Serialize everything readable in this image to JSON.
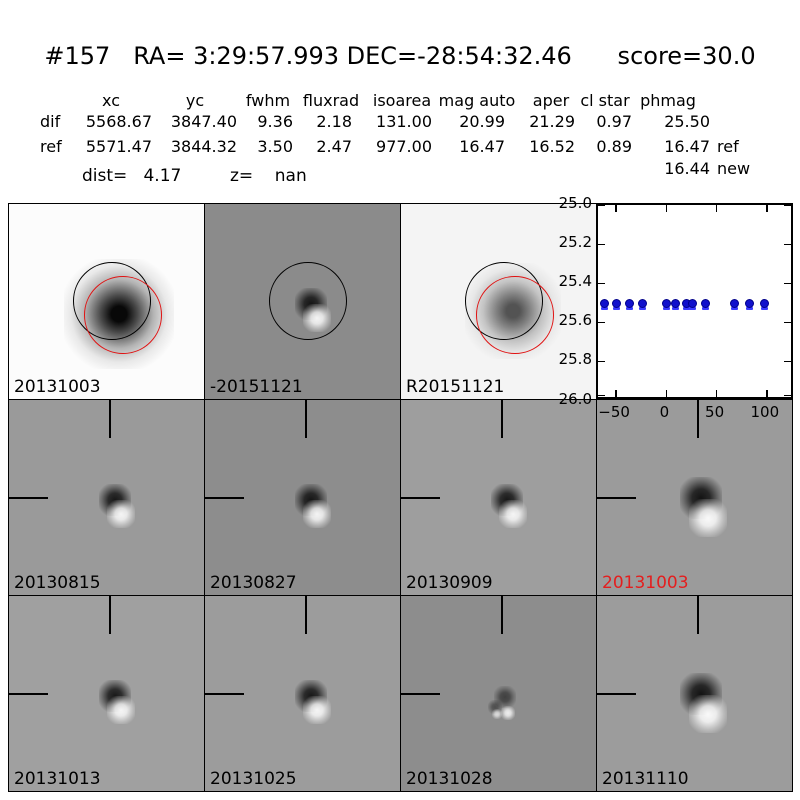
{
  "title": "#157   RA= 3:29:57.993 DEC=-28:54:32.46      score=30.0",
  "table": {
    "headers": [
      "xc",
      "yc",
      "fwhm",
      "fluxrad",
      "isoarea",
      "mag auto",
      "aper",
      "cl star",
      "phmag"
    ],
    "rows": [
      {
        "label": "dif",
        "values": [
          "5568.67",
          "3847.40",
          "9.36",
          "2.18",
          "131.00",
          "20.99",
          "21.29",
          "0.97",
          "25.50"
        ],
        "suffix": ""
      },
      {
        "label": "ref",
        "values": [
          "5571.47",
          "3844.32",
          "3.50",
          "2.47",
          "977.00",
          "16.47",
          "16.52",
          "0.89",
          "16.47"
        ],
        "suffix": "ref"
      }
    ],
    "extra": {
      "value": "16.44",
      "suffix": "new"
    },
    "dist_label": "dist=   4.17",
    "z_label": "z=    nan"
  },
  "cutouts": [
    [
      {
        "label": "20131003",
        "label_color": "#000000",
        "bg": "#fcfcfc",
        "overlay": "circles",
        "feature": "stamp-strong"
      },
      {
        "label": "-20151121",
        "label_color": "#000000",
        "bg": "#8b8b8b",
        "overlay": "circle",
        "feature": "dipole-medium"
      },
      {
        "label": "R20151121",
        "label_color": "#000000",
        "bg": "#f4f4f4",
        "overlay": "circles",
        "feature": "stamp-soft"
      },
      {
        "type": "plot"
      }
    ],
    [
      {
        "label": "20130815",
        "label_color": "#000000",
        "bg": "#9a9a9a",
        "overlay": "crosshair",
        "feature": "dipole-medium"
      },
      {
        "label": "20130827",
        "label_color": "#000000",
        "bg": "#8d8d8d",
        "overlay": "crosshair",
        "feature": "dipole-medium"
      },
      {
        "label": "20130909",
        "label_color": "#000000",
        "bg": "#9e9e9e",
        "overlay": "crosshair",
        "feature": "dipole-medium"
      },
      {
        "label": "20131003",
        "label_color": "#e41e1e",
        "bg": "#9b9b9b",
        "overlay": "crosshair",
        "feature": "dipole-large"
      }
    ],
    [
      {
        "label": "20131013",
        "label_color": "#000000",
        "bg": "#a0a0a0",
        "overlay": "crosshair",
        "feature": "dipole-medium"
      },
      {
        "label": "20131025",
        "label_color": "#000000",
        "bg": "#9c9c9c",
        "overlay": "crosshair",
        "feature": "dipole-medium"
      },
      {
        "label": "20131028",
        "label_color": "#000000",
        "bg": "#8d8d8d",
        "overlay": "crosshair",
        "feature": "dipole-artifact"
      },
      {
        "label": "20131110",
        "label_color": "#000000",
        "bg": "#9c9c9c",
        "overlay": "crosshair",
        "feature": "dipole-large"
      }
    ]
  ],
  "colors": {
    "aperture_black": "#000000",
    "aperture_red": "#e01212",
    "marker_blue": "#1111cc",
    "cap_blue": "#3a3aff",
    "highlight_red": "#e41e1e"
  },
  "chart_data": {
    "type": "scatter",
    "title": "",
    "xlabel": "",
    "ylabel": "",
    "x": [
      -62,
      -50,
      -37,
      -24,
      0,
      9,
      20,
      26,
      39,
      68,
      83,
      98
    ],
    "y": [
      25.5,
      25.5,
      25.5,
      25.5,
      25.5,
      25.5,
      25.5,
      25.5,
      25.5,
      25.5,
      25.5,
      25.5
    ],
    "cap_offset": 0.03,
    "xlim": [
      -68,
      128
    ],
    "ylim": [
      26.0,
      25.0
    ],
    "xticks": [
      -50,
      0,
      50,
      100
    ],
    "xtick_labels": [
      "−50",
      "0",
      "50",
      "100"
    ],
    "yticks": [
      25.0,
      25.2,
      25.4,
      25.6,
      25.8,
      26.0
    ],
    "ytick_labels": [
      "25.0",
      "25.2",
      "25.4",
      "25.6",
      "25.8",
      "26.0"
    ],
    "marker_color": "#1111cc",
    "marker_size": 9,
    "cap_color": "#3a3aff",
    "grid": false,
    "legend": null
  }
}
